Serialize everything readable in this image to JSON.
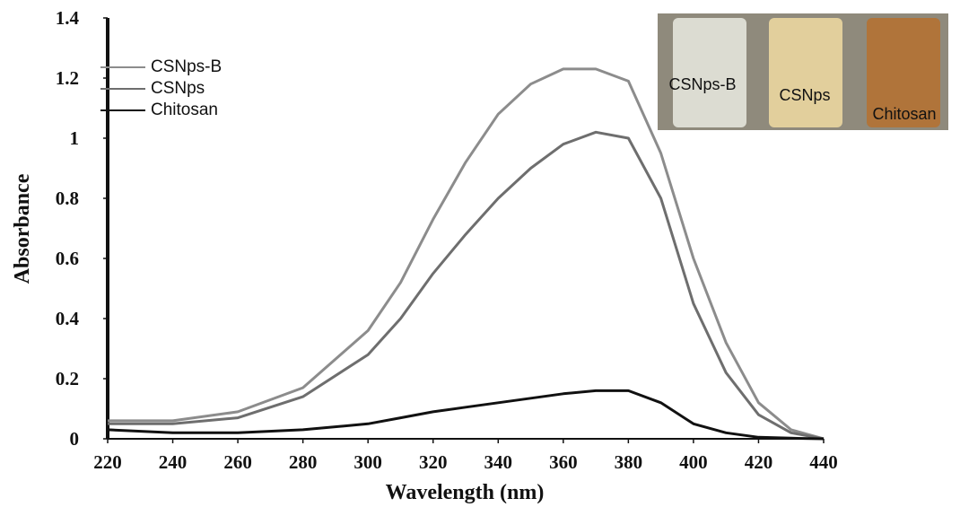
{
  "chart_data": {
    "type": "line",
    "x_label": "Wavelength (nm)",
    "y_label": "Absorbance",
    "x": [
      220,
      240,
      260,
      280,
      300,
      310,
      320,
      330,
      340,
      350,
      360,
      370,
      380,
      390,
      400,
      410,
      420,
      430,
      440
    ],
    "series": [
      {
        "name": "CSNps-B",
        "color": "#8c8c8c",
        "values": [
          0.06,
          0.06,
          0.09,
          0.17,
          0.36,
          0.52,
          0.73,
          0.92,
          1.08,
          1.18,
          1.23,
          1.23,
          1.19,
          0.95,
          0.6,
          0.32,
          0.12,
          0.03,
          0
        ]
      },
      {
        "name": "CSNps",
        "color": "#6e6e6e",
        "values": [
          0.05,
          0.05,
          0.07,
          0.14,
          0.28,
          0.4,
          0.55,
          0.68,
          0.8,
          0.9,
          0.98,
          1.02,
          1.0,
          0.8,
          0.45,
          0.22,
          0.08,
          0.02,
          0
        ]
      },
      {
        "name": "Chitosan",
        "color": "#111111",
        "values": [
          0.03,
          0.02,
          0.02,
          0.03,
          0.05,
          0.07,
          0.09,
          0.105,
          0.12,
          0.135,
          0.15,
          0.16,
          0.16,
          0.12,
          0.05,
          0.02,
          0.005,
          0.002,
          0
        ]
      }
    ],
    "xlim": [
      220,
      440
    ],
    "ylim": [
      0,
      1.4
    ],
    "xticks": [
      220,
      240,
      260,
      280,
      300,
      320,
      340,
      360,
      380,
      400,
      420,
      440
    ],
    "yticks": [
      0,
      0.2,
      0.4,
      0.6,
      0.8,
      1,
      1.2,
      1.4
    ],
    "inset_labels": [
      "CSNps-B",
      "CSNps",
      "Chitosan"
    ]
  }
}
